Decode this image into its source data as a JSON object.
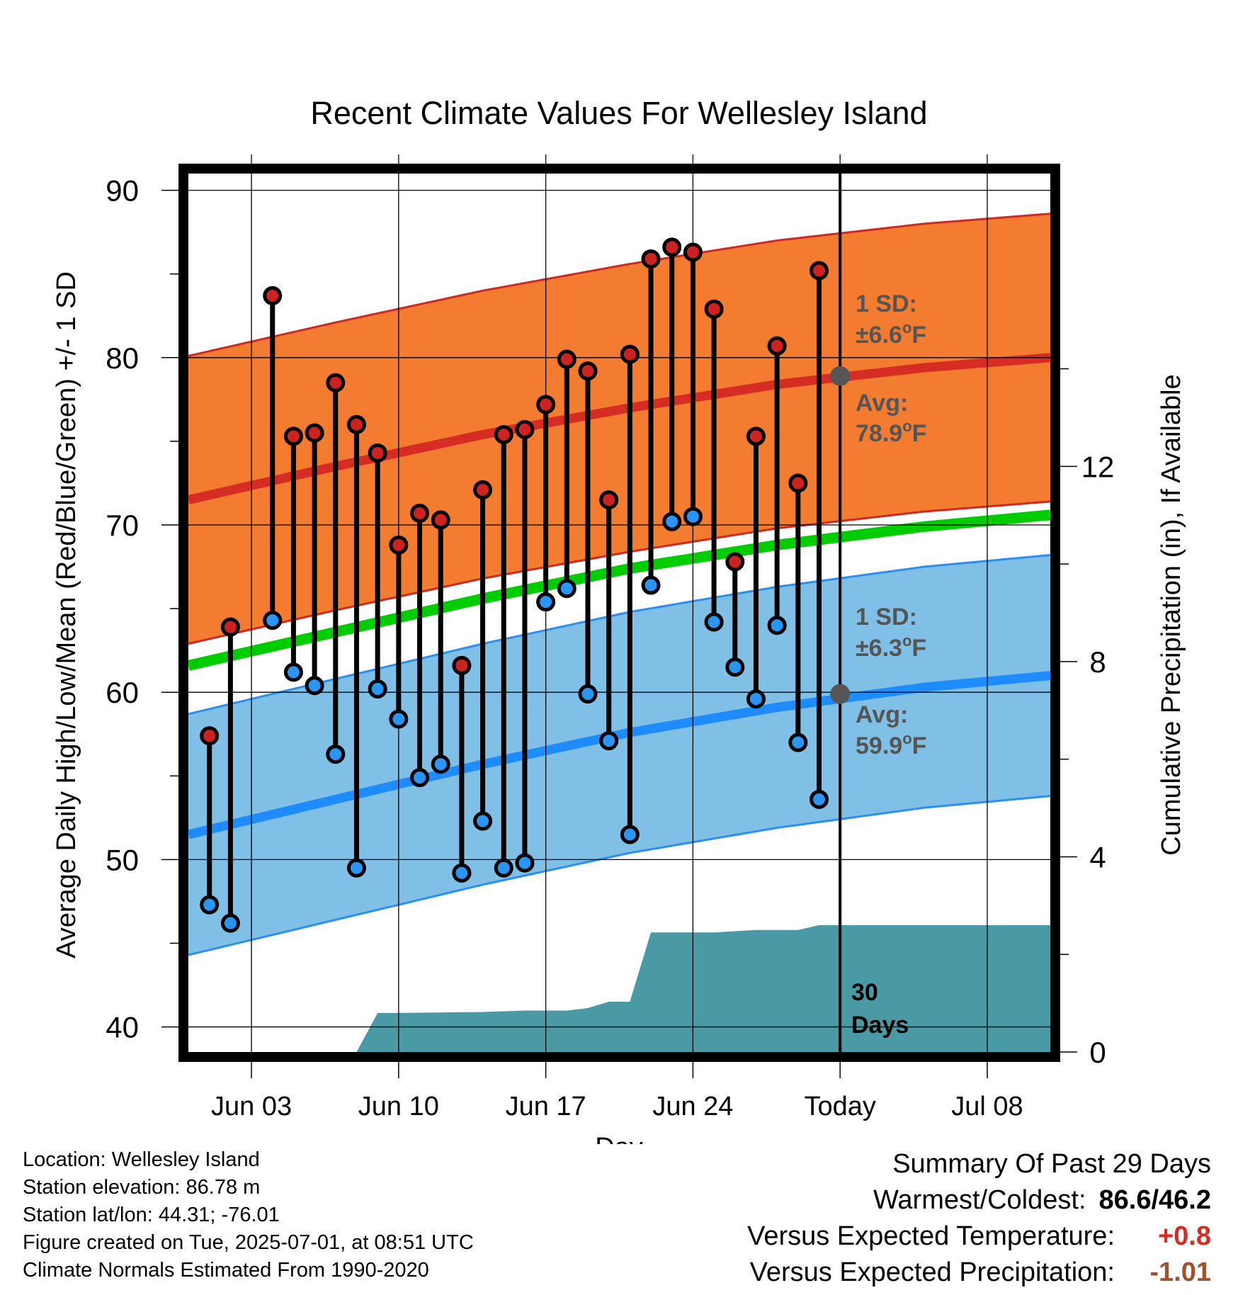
{
  "chart_data": {
    "type": "line",
    "title": "Recent Climate Values For Wellesley Island",
    "xlabel": "Day",
    "ylabel": "Average Daily High/Low/Mean (Red/Blue/Green) +/- 1 SD",
    "y2label": "Cumulative Precipitation (in), If Available",
    "ylim": [
      38.5,
      91
    ],
    "y_ticks": [
      40,
      50,
      60,
      70,
      80,
      90
    ],
    "y2lim": [
      0,
      18
    ],
    "y2_ticks": [
      0,
      4,
      8,
      12
    ],
    "xlim": [
      0,
      41
    ],
    "x_ticks": [
      {
        "day": 3,
        "label": "Jun 03"
      },
      {
        "day": 10,
        "label": "Jun 10"
      },
      {
        "day": 17,
        "label": "Jun 17"
      },
      {
        "day": 24,
        "label": "Jun 24"
      },
      {
        "day": 31,
        "label": "Today"
      },
      {
        "day": 38,
        "label": "Jul 08"
      }
    ],
    "today_day": 31,
    "grid": true,
    "colors": {
      "high_band": "#f47c30",
      "high_band_edge": "#cc2a22",
      "high_mean_line": "#d62c24",
      "low_band": "#80c0e6",
      "low_band_edge": "#2b8ff2",
      "low_mean_line": "#1e8cff",
      "mean_line": "#00cc00",
      "precip_fill": "#4a9aa5",
      "high_dot": "#cc2222",
      "low_dot": "#2b95f5",
      "today_marker": "#555555"
    },
    "normal_high": {
      "days": [
        0,
        7,
        14,
        21,
        28,
        35,
        41
      ],
      "values": [
        71.5,
        73.5,
        75.4,
        77.0,
        78.4,
        79.4,
        80.0
      ]
    },
    "normal_low": {
      "days": [
        0,
        7,
        14,
        21,
        28,
        35,
        41
      ],
      "values": [
        51.5,
        53.6,
        55.7,
        57.6,
        59.1,
        60.3,
        61.0
      ]
    },
    "normal_mean": {
      "days": [
        0,
        7,
        14,
        21,
        28,
        35,
        41
      ],
      "values": [
        61.6,
        63.6,
        65.6,
        67.4,
        68.8,
        69.9,
        70.6
      ]
    },
    "high_sd": 8.6,
    "low_sd": 7.2,
    "series": [
      {
        "name": "High",
        "days": [
          1,
          2,
          4,
          5,
          6,
          7,
          8,
          9,
          10,
          11,
          12,
          13,
          14,
          15,
          16,
          17,
          18,
          19,
          20,
          21,
          22,
          23,
          24,
          25,
          26,
          27,
          28,
          29,
          30
        ],
        "values": [
          57.4,
          63.9,
          83.7,
          75.3,
          75.5,
          78.5,
          76.0,
          74.3,
          68.8,
          70.7,
          70.3,
          61.6,
          72.1,
          75.4,
          75.7,
          77.2,
          79.9,
          79.2,
          71.5,
          80.2,
          85.9,
          86.6,
          86.3,
          82.9,
          67.8,
          75.3,
          80.7,
          72.5,
          85.2
        ]
      },
      {
        "name": "Low",
        "days": [
          1,
          2,
          4,
          5,
          6,
          7,
          8,
          9,
          10,
          11,
          12,
          13,
          14,
          15,
          16,
          17,
          18,
          19,
          20,
          21,
          22,
          23,
          24,
          25,
          26,
          27,
          28,
          29,
          30
        ],
        "values": [
          47.3,
          46.2,
          64.3,
          61.2,
          60.4,
          56.3,
          49.5,
          60.2,
          58.4,
          54.9,
          55.7,
          49.2,
          52.3,
          49.5,
          49.8,
          65.4,
          66.2,
          59.9,
          57.1,
          51.5,
          66.4,
          70.2,
          70.5,
          64.2,
          61.5,
          59.6,
          64.0,
          57.0,
          53.6
        ]
      },
      {
        "name": "Cumulative Precipitation",
        "days": [
          0,
          8,
          9,
          10,
          14,
          16,
          17,
          18,
          19,
          20,
          21,
          22,
          23,
          24,
          25,
          27,
          29,
          30,
          31,
          41
        ],
        "values": [
          0,
          0,
          0.8,
          0.8,
          0.82,
          0.85,
          0.85,
          0.85,
          0.9,
          1.03,
          1.03,
          2.45,
          2.45,
          2.45,
          2.45,
          2.5,
          2.5,
          2.6,
          2.6,
          2.6
        ]
      }
    ],
    "annotations": {
      "high_sd_title": "1 SD:",
      "high_sd_value": "±6.6",
      "high_avg_title": "Avg:",
      "high_avg_value": "78.9",
      "low_sd_title": "1 SD:",
      "low_sd_value": "±6.3",
      "low_avg_title": "Avg:",
      "low_avg_value": "59.9",
      "degree_symbol": "o",
      "unit": "F",
      "today_high": 78.9,
      "today_low": 59.9,
      "precip_days_1": "30",
      "precip_days_2": "Days"
    }
  },
  "footer": {
    "location": "Location: Wellesley Island",
    "elevation": "Station elevation: 86.78 m",
    "latlon": "Station lat/lon: 44.31; -76.01",
    "created": "Figure created on Tue, 2025-07-01, at 08:51 UTC",
    "normals": "Climate Normals Estimated From 1990-2020"
  },
  "summary": {
    "title": "Summary Of Past 29 Days",
    "warm_cold_label": "Warmest/Coldest:",
    "warm_cold_value": "86.6/46.2",
    "temp_label": "Versus Expected Temperature:",
    "temp_value": "+0.8",
    "temp_color": "#d62c24",
    "precip_label": "Versus Expected Precipitation:",
    "precip_value": "-1.01",
    "precip_color": "#a0522d"
  }
}
